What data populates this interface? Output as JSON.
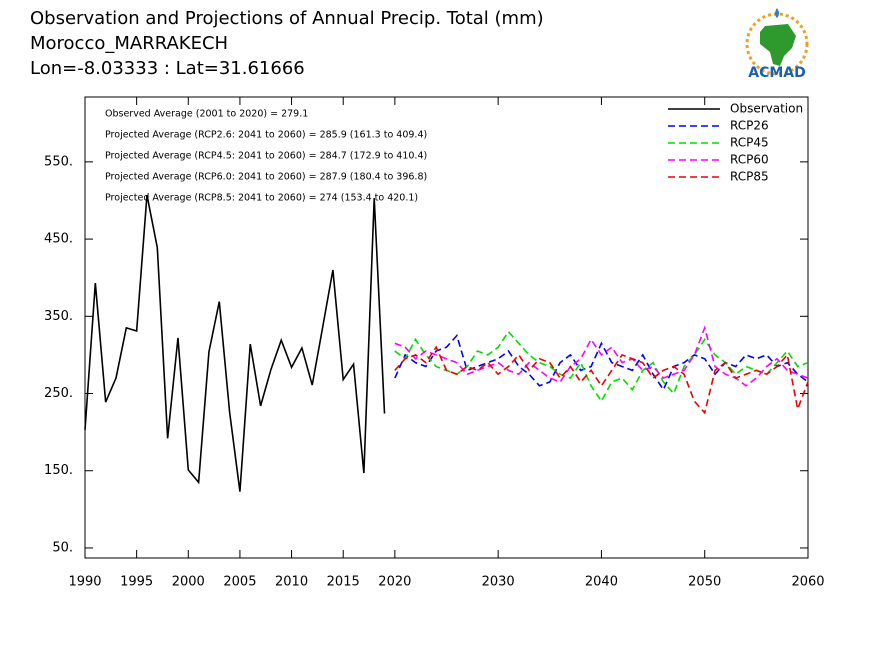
{
  "chart_data": {
    "type": "line",
    "title": [
      "Observation and Projections of Annual Precip. Total (mm)",
      "Morocco_MARRAKECH",
      "Lon=-8.03333 : Lat=31.61666"
    ],
    "logo_text": "ACMAD",
    "annotations": [
      "Observed Average (2001 to 2020) = 279.1",
      "Projected Average (RCP2.6: 2041 to 2060) = 285.9 (161.3 to 409.4)",
      "Projected Average (RCP4.5: 2041 to 2060) = 284.7 (172.9 to 410.4)",
      "Projected Average (RCP6.0: 2041 to 2060) = 287.9 (180.4 to 396.8)",
      "Projected Average (RCP8.5: 2041 to 2060) = 274 (153.4 to 420.1)"
    ],
    "x": [
      1990,
      1991,
      1992,
      1993,
      1994,
      1995,
      1996,
      1997,
      1998,
      1999,
      2000,
      2001,
      2002,
      2003,
      2004,
      2005,
      2006,
      2007,
      2008,
      2009,
      2010,
      2011,
      2012,
      2013,
      2014,
      2015,
      2016,
      2017,
      2018,
      2019,
      2020,
      2021,
      2022,
      2023,
      2024,
      2025,
      2026,
      2027,
      2028,
      2029,
      2030,
      2031,
      2032,
      2033,
      2034,
      2035,
      2036,
      2037,
      2038,
      2039,
      2040,
      2041,
      2042,
      2043,
      2044,
      2045,
      2046,
      2047,
      2048,
      2049,
      2050,
      2051,
      2052,
      2053,
      2054,
      2055,
      2056,
      2057,
      2058,
      2059,
      2060
    ],
    "series": [
      {
        "name": "Observation",
        "color": "#000000",
        "dashed": false,
        "values": [
          203,
          393,
          239,
          270,
          335,
          331,
          507,
          439,
          192,
          322,
          151,
          135,
          304,
          369,
          226,
          123,
          314,
          234,
          281,
          319,
          284,
          309,
          261,
          335,
          410,
          268,
          288,
          147,
          503,
          224,
          null,
          null,
          null,
          null,
          null,
          null,
          null,
          null,
          null,
          null,
          null,
          null,
          null,
          null,
          null,
          null,
          null,
          null,
          null,
          null,
          null,
          null,
          null,
          null,
          null,
          null,
          null,
          null,
          null,
          null,
          null,
          null,
          null,
          null,
          null,
          null,
          null,
          null,
          null,
          null,
          null
        ]
      },
      {
        "name": "RCP26",
        "color": "#0000ff",
        "dashed": true,
        "values": [
          null,
          null,
          null,
          null,
          null,
          null,
          null,
          null,
          null,
          null,
          null,
          null,
          null,
          null,
          null,
          null,
          null,
          null,
          null,
          null,
          null,
          null,
          null,
          null,
          null,
          null,
          null,
          null,
          null,
          null,
          270,
          300,
          290,
          285,
          305,
          310,
          325,
          280,
          285,
          290,
          295,
          305,
          285,
          275,
          260,
          265,
          290,
          300,
          280,
          285,
          315,
          290,
          285,
          280,
          300,
          275,
          255,
          285,
          290,
          300,
          295,
          275,
          290,
          285,
          300,
          295,
          300,
          285,
          290,
          275,
          265
        ]
      },
      {
        "name": "RCP45",
        "color": "#00dd00",
        "dashed": true,
        "values": [
          null,
          null,
          null,
          null,
          null,
          null,
          null,
          null,
          null,
          null,
          null,
          null,
          null,
          null,
          null,
          null,
          null,
          null,
          null,
          null,
          null,
          null,
          null,
          null,
          null,
          null,
          null,
          null,
          null,
          null,
          305,
          295,
          320,
          300,
          285,
          280,
          275,
          285,
          305,
          300,
          310,
          330,
          315,
          300,
          290,
          285,
          275,
          270,
          290,
          260,
          240,
          265,
          270,
          255,
          280,
          290,
          265,
          250,
          285,
          300,
          320,
          300,
          290,
          275,
          285,
          280,
          275,
          290,
          305,
          285,
          290
        ]
      },
      {
        "name": "RCP60",
        "color": "#ff00ff",
        "dashed": true,
        "values": [
          null,
          null,
          null,
          null,
          null,
          null,
          null,
          null,
          null,
          null,
          null,
          null,
          null,
          null,
          null,
          null,
          null,
          null,
          null,
          null,
          null,
          null,
          null,
          null,
          null,
          null,
          null,
          null,
          null,
          null,
          315,
          310,
          295,
          305,
          300,
          295,
          290,
          275,
          280,
          285,
          290,
          280,
          275,
          290,
          280,
          270,
          265,
          285,
          295,
          320,
          300,
          310,
          290,
          295,
          280,
          285,
          270,
          275,
          280,
          300,
          335,
          285,
          275,
          270,
          260,
          270,
          285,
          295,
          280,
          275,
          270
        ]
      },
      {
        "name": "RCP85",
        "color": "#ee0000",
        "dashed": true,
        "values": [
          null,
          null,
          null,
          null,
          null,
          null,
          null,
          null,
          null,
          null,
          null,
          null,
          null,
          null,
          null,
          null,
          null,
          null,
          null,
          null,
          null,
          null,
          null,
          null,
          null,
          null,
          null,
          null,
          null,
          null,
          280,
          295,
          300,
          290,
          310,
          280,
          275,
          285,
          280,
          290,
          275,
          285,
          300,
          280,
          295,
          290,
          270,
          285,
          265,
          280,
          260,
          280,
          300,
          295,
          290,
          270,
          280,
          285,
          275,
          240,
          225,
          280,
          290,
          270,
          275,
          280,
          275,
          285,
          300,
          230,
          265
        ]
      }
    ],
    "xlim": [
      1990,
      2060
    ],
    "xticks": [
      1990,
      1995,
      2000,
      2005,
      2010,
      2015,
      2020,
      2030,
      2040,
      2050,
      2060
    ],
    "ylim": [
      37,
      634
    ],
    "yticks": [
      {
        "value": 50,
        "label": "50."
      },
      {
        "value": 150,
        "label": "150."
      },
      {
        "value": 250,
        "label": "250."
      },
      {
        "value": 350,
        "label": "350."
      },
      {
        "value": 450,
        "label": "450."
      },
      {
        "value": 550,
        "label": "550."
      }
    ],
    "legend": "upper right",
    "grid": false
  }
}
